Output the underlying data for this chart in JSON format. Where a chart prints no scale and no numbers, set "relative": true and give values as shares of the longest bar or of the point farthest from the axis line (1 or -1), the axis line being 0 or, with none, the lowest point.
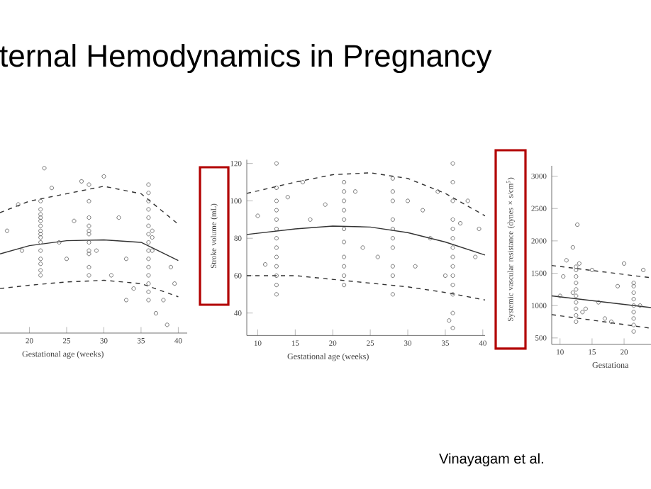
{
  "chart_data": [
    {
      "type": "scatter",
      "title": "ternal Hemodynamics in Pregnancy",
      "xlabel": "Gestational age (weeks)",
      "relative": true,
      "xlim": [
        16.05,
        41.2
      ],
      "xticks": [
        20,
        25,
        30,
        35,
        40
      ],
      "series": [
        {
          "type": "scatter",
          "marker": "circle",
          "color": "#555555",
          "x": [
            21.5,
            21.5,
            21.5,
            21.5,
            21.5,
            21.5,
            21.5,
            21.5,
            21.5,
            21.5,
            21.5,
            21.5,
            21.5,
            21.5,
            21.5,
            28,
            28,
            28,
            28,
            28,
            28,
            28,
            28,
            28,
            28,
            28,
            36,
            36,
            36,
            36,
            36,
            36,
            36,
            36,
            36,
            36,
            36,
            36,
            36,
            36,
            36,
            36.5,
            36.5,
            36.5,
            17,
            18.5,
            19,
            22,
            23,
            24,
            25,
            26,
            27,
            29,
            30,
            31,
            32,
            33,
            34,
            37,
            38,
            38.5,
            39,
            39.5,
            33
          ],
          "values": [
            0.35,
            0.42,
            0.5,
            0.55,
            0.6,
            0.65,
            0.7,
            0.75,
            0.8,
            0.45,
            0.38,
            0.58,
            0.62,
            0.68,
            0.72,
            0.35,
            0.4,
            0.5,
            0.55,
            0.6,
            0.65,
            0.7,
            0.8,
            0.9,
            0.48,
            0.62,
            0.2,
            0.25,
            0.3,
            0.35,
            0.4,
            0.45,
            0.5,
            0.55,
            0.6,
            0.65,
            0.7,
            0.75,
            0.8,
            0.85,
            0.9,
            0.5,
            0.58,
            0.62,
            0.62,
            0.78,
            0.5,
            1.0,
            0.88,
            0.55,
            0.45,
            0.68,
            0.92,
            0.5,
            0.95,
            0.35,
            0.7,
            0.45,
            0.27,
            0.12,
            0.2,
            0.05,
            0.4,
            0.3,
            0.2
          ]
        },
        {
          "type": "line",
          "color": "#333333",
          "line_style": "solid",
          "x": [
            16.05,
            20,
            25,
            30,
            35,
            40
          ],
          "values": [
            0.48,
            0.53,
            0.56,
            0.565,
            0.55,
            0.44
          ]
        },
        {
          "type": "line",
          "color": "#333333",
          "line_style": "dashed",
          "x": [
            16.05,
            20,
            25,
            30,
            35,
            40
          ],
          "values": [
            0.73,
            0.8,
            0.845,
            0.89,
            0.845,
            0.66
          ]
        },
        {
          "type": "line",
          "color": "#333333",
          "line_style": "dashed",
          "x": [
            16.05,
            20,
            25,
            30,
            35,
            40
          ],
          "values": [
            0.27,
            0.29,
            0.31,
            0.32,
            0.3,
            0.22
          ]
        }
      ]
    },
    {
      "type": "scatter",
      "xlabel": "Gestational age (weeks)",
      "ylabel": "Stroke volume (mL)",
      "xlim": [
        8.54,
        40.3
      ],
      "ylim": [
        28,
        122
      ],
      "xticks": [
        10,
        15,
        20,
        25,
        30,
        35,
        40
      ],
      "yticks": [
        40,
        60,
        80,
        100,
        120
      ],
      "series": [
        {
          "type": "scatter",
          "marker": "circle",
          "color": "#555555",
          "x": [
            12.5,
            12.5,
            12.5,
            12.5,
            12.5,
            12.5,
            12.5,
            12.5,
            12.5,
            12.5,
            12.5,
            12.5,
            12.5,
            21.5,
            21.5,
            21.5,
            21.5,
            21.5,
            21.5,
            21.5,
            21.5,
            21.5,
            21.5,
            21.5,
            28,
            28,
            28,
            28,
            28,
            28,
            28,
            28,
            28,
            28,
            36,
            36,
            36,
            36,
            36,
            36,
            36,
            36,
            36,
            36,
            36,
            36,
            36,
            36,
            10,
            11,
            14,
            16,
            17,
            19,
            23,
            24,
            26,
            30,
            31,
            32,
            33,
            34,
            35,
            37,
            38,
            39,
            39.5,
            35.5
          ],
          "values": [
            50,
            55,
            60,
            65,
            70,
            75,
            80,
            85,
            90,
            95,
            100,
            107,
            120,
            55,
            60,
            65,
            70,
            78,
            85,
            90,
            95,
            100,
            105,
            110,
            50,
            60,
            65,
            75,
            80,
            85,
            90,
            100,
            105,
            112,
            32,
            40,
            50,
            55,
            60,
            65,
            70,
            75,
            80,
            85,
            90,
            100,
            110,
            120,
            92,
            66,
            102,
            110,
            90,
            98,
            105,
            75,
            70,
            100,
            65,
            95,
            80,
            105,
            60,
            88,
            100,
            70,
            85,
            36
          ]
        },
        {
          "type": "line",
          "color": "#333333",
          "line_style": "solid",
          "x": [
            8.54,
            15,
            20,
            25,
            30,
            35,
            40.3
          ],
          "values": [
            82,
            85,
            86.5,
            86,
            83,
            78,
            71
          ]
        },
        {
          "type": "line",
          "color": "#333333",
          "line_style": "dashed",
          "x": [
            8.54,
            15,
            20,
            25,
            30,
            35,
            40.3
          ],
          "values": [
            104,
            110,
            114,
            115,
            112,
            104,
            92
          ]
        },
        {
          "type": "line",
          "color": "#333333",
          "line_style": "dashed",
          "x": [
            8.54,
            15,
            20,
            25,
            30,
            35,
            40.3
          ],
          "values": [
            60,
            60,
            58,
            56,
            54,
            51,
            47
          ]
        }
      ]
    },
    {
      "type": "scatter",
      "xlabel": "Gestationa",
      "ylabel": "Systemic vascular resistance (dynes × s/cm$^{5}$)",
      "xlim": [
        8.7,
        24.2
      ],
      "ylim": [
        400,
        3160
      ],
      "xticks": [
        10,
        15,
        20
      ],
      "yticks": [
        500,
        1000,
        1500,
        2000,
        2500,
        3000
      ],
      "annotations": [
        "Vinayagam et al."
      ],
      "series": [
        {
          "type": "scatter",
          "marker": "circle",
          "color": "#555555",
          "x": [
            12.5,
            12.5,
            12.5,
            12.5,
            12.5,
            12.5,
            12.5,
            12.5,
            12.5,
            12.5,
            12.7,
            12,
            13,
            21.5,
            21.5,
            21.5,
            21.5,
            21.5,
            21.5,
            21.5,
            21.5,
            21.5,
            10,
            10.5,
            11,
            14,
            15,
            16,
            17,
            18,
            19,
            20,
            22.5,
            23,
            12,
            13.5
          ],
          "values": [
            750,
            850,
            950,
            1050,
            1150,
            1250,
            1350,
            1450,
            1550,
            1600,
            2250,
            1900,
            1650,
            600,
            700,
            800,
            900,
            1000,
            1100,
            1200,
            1300,
            1350,
            1150,
            1450,
            1700,
            950,
            1550,
            1050,
            800,
            750,
            1300,
            1650,
            1000,
            1550,
            1200,
            900
          ]
        },
        {
          "type": "line",
          "color": "#333333",
          "line_style": "solid",
          "x": [
            8.7,
            24.2
          ],
          "values": [
            1150,
            970
          ]
        },
        {
          "type": "line",
          "color": "#333333",
          "line_style": "dashed",
          "x": [
            8.7,
            24.2
          ],
          "values": [
            1620,
            1430
          ]
        },
        {
          "type": "line",
          "color": "#333333",
          "line_style": "dashed",
          "x": [
            8.7,
            24.2
          ],
          "values": [
            860,
            650
          ]
        }
      ]
    }
  ]
}
